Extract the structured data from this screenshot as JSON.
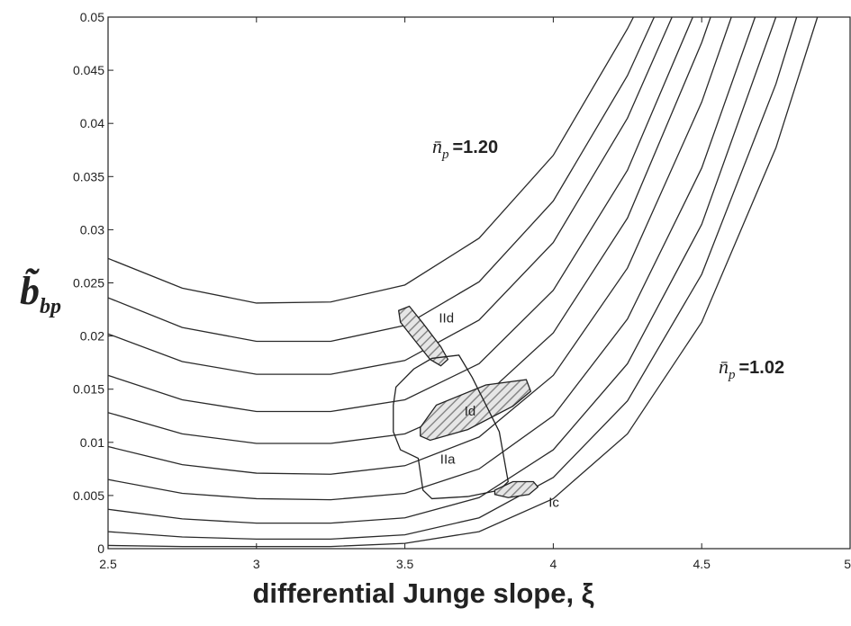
{
  "chart_data": {
    "type": "line",
    "xlabel": "differential Junge slope, ξ",
    "ylabel": {
      "symbol": "b̃",
      "subscript": "bp"
    },
    "xlim": [
      2.5,
      5
    ],
    "xticks": [
      2.5,
      3,
      3.5,
      4,
      4.5,
      5
    ],
    "ylim": [
      0,
      0.05
    ],
    "yticks": [
      0,
      0.005,
      0.01,
      0.015,
      0.02,
      0.025,
      0.03,
      0.035,
      0.04,
      0.045,
      0.05
    ],
    "grid": false,
    "color": "#2a2a2a",
    "series": [
      {
        "x": [
          2.5,
          2.75,
          3.0,
          3.25,
          3.5,
          3.75,
          4.0,
          4.25,
          4.27
        ],
        "values": [
          0.0273,
          0.0245,
          0.0231,
          0.0232,
          0.0248,
          0.0292,
          0.037,
          0.0489,
          0.05
        ]
      },
      {
        "x": [
          2.5,
          2.75,
          3.0,
          3.25,
          3.5,
          3.75,
          4.0,
          4.25,
          4.34
        ],
        "values": [
          0.0236,
          0.0208,
          0.0195,
          0.0195,
          0.021,
          0.0251,
          0.0327,
          0.0445,
          0.05
        ]
      },
      {
        "x": [
          2.5,
          2.75,
          3.0,
          3.25,
          3.5,
          3.75,
          4.0,
          4.25,
          4.4
        ],
        "values": [
          0.0202,
          0.0176,
          0.0164,
          0.0164,
          0.0177,
          0.0215,
          0.0288,
          0.0405,
          0.05
        ]
      },
      {
        "x": [
          2.5,
          2.75,
          3.0,
          3.25,
          3.5,
          3.75,
          4.0,
          4.25,
          4.47
        ],
        "values": [
          0.0163,
          0.014,
          0.0129,
          0.0129,
          0.014,
          0.0174,
          0.0243,
          0.0356,
          0.05
        ]
      },
      {
        "x": [
          2.5,
          2.75,
          3.0,
          3.25,
          3.5,
          3.75,
          4.0,
          4.25,
          4.5,
          4.53
        ],
        "values": [
          0.0128,
          0.0108,
          0.0099,
          0.0099,
          0.0108,
          0.0139,
          0.0203,
          0.0311,
          0.0476,
          0.05
        ]
      },
      {
        "x": [
          2.5,
          2.75,
          3.0,
          3.25,
          3.5,
          3.75,
          4.0,
          4.25,
          4.5,
          4.6
        ],
        "values": [
          0.0096,
          0.0079,
          0.0071,
          0.007,
          0.0078,
          0.0105,
          0.0163,
          0.0264,
          0.042,
          0.05
        ]
      },
      {
        "x": [
          2.5,
          2.75,
          3.0,
          3.25,
          3.5,
          3.75,
          4.0,
          4.25,
          4.5,
          4.68
        ],
        "values": [
          0.0065,
          0.0052,
          0.0047,
          0.0046,
          0.0052,
          0.0075,
          0.0125,
          0.0216,
          0.0358,
          0.05
        ]
      },
      {
        "x": [
          2.5,
          2.75,
          3.0,
          3.25,
          3.5,
          3.75,
          4.0,
          4.25,
          4.5,
          4.75
        ],
        "values": [
          0.0037,
          0.0028,
          0.0024,
          0.0024,
          0.0029,
          0.0048,
          0.0093,
          0.0174,
          0.0305,
          0.05
        ]
      },
      {
        "x": [
          2.5,
          2.75,
          3.0,
          3.25,
          3.5,
          3.75,
          4.0,
          4.25,
          4.5,
          4.75,
          4.82
        ],
        "values": [
          0.0016,
          0.0011,
          0.0009,
          0.0009,
          0.0013,
          0.0029,
          0.0067,
          0.0139,
          0.0258,
          0.0437,
          0.05
        ]
      },
      {
        "x": [
          2.5,
          2.75,
          3.0,
          3.25,
          3.5,
          3.75,
          4.0,
          4.25,
          4.5,
          4.75,
          4.89
        ],
        "values": [
          0.0003,
          0.0002,
          0.0002,
          0.0002,
          0.0005,
          0.0016,
          0.0047,
          0.0108,
          0.0213,
          0.0377,
          0.05
        ]
      }
    ],
    "regions": [
      {
        "label": "IId",
        "hatched": true,
        "x": [
          3.479,
          3.515,
          3.561,
          3.621,
          3.645,
          3.621,
          3.585,
          3.536,
          3.485
        ],
        "y": [
          0.0224,
          0.0228,
          0.0212,
          0.019,
          0.0178,
          0.0172,
          0.0178,
          0.0195,
          0.0213
        ]
      },
      {
        "label": "Id",
        "hatched": true,
        "x": [
          3.552,
          3.606,
          3.773,
          3.909,
          3.924,
          3.864,
          3.712,
          3.585,
          3.552
        ],
        "y": [
          0.0114,
          0.0135,
          0.0154,
          0.0159,
          0.0148,
          0.0134,
          0.0112,
          0.0102,
          0.0106
        ]
      },
      {
        "label": "IIa",
        "hatched": false,
        "x": [
          3.47,
          3.53,
          3.591,
          3.682,
          3.727,
          3.818,
          3.848,
          3.818,
          3.712,
          3.591,
          3.561,
          3.545,
          3.485,
          3.461,
          3.461
        ],
        "y": [
          0.0152,
          0.0169,
          0.0179,
          0.0182,
          0.0161,
          0.011,
          0.0063,
          0.0055,
          0.0049,
          0.0047,
          0.0055,
          0.0085,
          0.0093,
          0.011,
          0.0135
        ]
      },
      {
        "label": "Ic",
        "hatched": true,
        "x": [
          3.803,
          3.864,
          3.933,
          3.948,
          3.918,
          3.848,
          3.803
        ],
        "y": [
          0.0055,
          0.0063,
          0.0063,
          0.0058,
          0.0051,
          0.0048,
          0.0051
        ]
      }
    ],
    "annotations": [
      {
        "symbol": "n̄",
        "subscript": "p",
        "text": "=1.20"
      },
      {
        "symbol": "n̄",
        "subscript": "p",
        "text": "=1.02"
      }
    ]
  }
}
